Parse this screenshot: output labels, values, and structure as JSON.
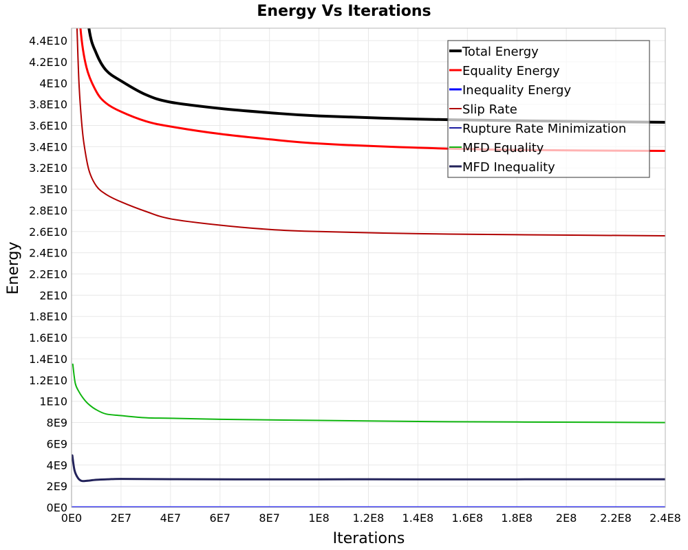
{
  "chart_data": {
    "type": "line",
    "title": "Energy Vs Iterations",
    "xlabel": "Iterations",
    "ylabel": "Energy",
    "xlim": [
      0,
      240000000
    ],
    "ylim": [
      0,
      45170000000
    ],
    "grid": true,
    "legend_position": "top-right",
    "x_ticks": [
      {
        "value": 0,
        "label": "0E0"
      },
      {
        "value": 20000000,
        "label": "2E7"
      },
      {
        "value": 40000000,
        "label": "4E7"
      },
      {
        "value": 60000000,
        "label": "6E7"
      },
      {
        "value": 80000000,
        "label": "8E7"
      },
      {
        "value": 100000000,
        "label": "1E8"
      },
      {
        "value": 120000000,
        "label": "1.2E8"
      },
      {
        "value": 140000000,
        "label": "1.4E8"
      },
      {
        "value": 160000000,
        "label": "1.6E8"
      },
      {
        "value": 180000000,
        "label": "1.8E8"
      },
      {
        "value": 200000000,
        "label": "2E8"
      },
      {
        "value": 220000000,
        "label": "2.2E8"
      },
      {
        "value": 240000000,
        "label": "2.4E8"
      }
    ],
    "y_ticks": [
      {
        "value": 0,
        "label": "0E0"
      },
      {
        "value": 2000000000,
        "label": "2E9"
      },
      {
        "value": 4000000000,
        "label": "4E9"
      },
      {
        "value": 6000000000,
        "label": "6E9"
      },
      {
        "value": 8000000000,
        "label": "8E9"
      },
      {
        "value": 10000000000,
        "label": "1E10"
      },
      {
        "value": 12000000000,
        "label": "1.2E10"
      },
      {
        "value": 14000000000,
        "label": "1.4E10"
      },
      {
        "value": 16000000000,
        "label": "1.6E10"
      },
      {
        "value": 18000000000,
        "label": "1.8E10"
      },
      {
        "value": 20000000000,
        "label": "2E10"
      },
      {
        "value": 22000000000,
        "label": "2.2E10"
      },
      {
        "value": 24000000000,
        "label": "2.4E10"
      },
      {
        "value": 26000000000,
        "label": "2.6E10"
      },
      {
        "value": 28000000000,
        "label": "2.8E10"
      },
      {
        "value": 30000000000,
        "label": "3E10"
      },
      {
        "value": 32000000000,
        "label": "3.2E10"
      },
      {
        "value": 34000000000,
        "label": "3.4E10"
      },
      {
        "value": 36000000000,
        "label": "3.6E10"
      },
      {
        "value": 38000000000,
        "label": "3.8E10"
      },
      {
        "value": 40000000000,
        "label": "4E10"
      },
      {
        "value": 42000000000,
        "label": "4.2E10"
      },
      {
        "value": 44000000000,
        "label": "4.4E10"
      }
    ],
    "series": [
      {
        "name": "Total Energy",
        "color": "#000000",
        "weight": "thick",
        "x": [
          4000000,
          7000000,
          10000000,
          14000000,
          20000000,
          30000000,
          40000000,
          60000000,
          80000000,
          100000000,
          140000000,
          180000000,
          240000000
        ],
        "y": [
          52000000000,
          45200000000,
          42800000000,
          41200000000,
          40200000000,
          38900000000,
          38200000000,
          37600000000,
          37200000000,
          36900000000,
          36600000000,
          36450000000,
          36300000000
        ]
      },
      {
        "name": "Equality Energy",
        "color": "#ff0000",
        "weight": "medium",
        "x": [
          2000000,
          3600000,
          6000000,
          10000000,
          14000000,
          20000000,
          30000000,
          40000000,
          60000000,
          80000000,
          100000000,
          140000000,
          180000000,
          240000000
        ],
        "y": [
          52000000000,
          45200000000,
          41500000000,
          39200000000,
          38100000000,
          37300000000,
          36400000000,
          35900000000,
          35200000000,
          34700000000,
          34300000000,
          33900000000,
          33700000000,
          33600000000
        ]
      },
      {
        "name": "Inequality Energy",
        "color": "#0000ff",
        "weight": "medium",
        "x": [
          0,
          240000000
        ],
        "y": [
          0,
          0
        ]
      },
      {
        "name": "Slip Rate",
        "color": "#b00000",
        "weight": "thin",
        "x": [
          1500000,
          2200000,
          3000000,
          4000000,
          5000000,
          7000000,
          10000000,
          14000000,
          20000000,
          30000000,
          40000000,
          60000000,
          80000000,
          100000000,
          140000000,
          180000000,
          240000000
        ],
        "y": [
          50000000000,
          45200000000,
          40000000000,
          36500000000,
          34300000000,
          31800000000,
          30300000000,
          29500000000,
          28800000000,
          27900000000,
          27200000000,
          26600000000,
          26200000000,
          26000000000,
          25800000000,
          25700000000,
          25600000000
        ]
      },
      {
        "name": "Rupture Rate Minimization",
        "color": "#1a1aa0",
        "weight": "thin",
        "x": [
          0,
          240000000
        ],
        "y": [
          0,
          0
        ]
      },
      {
        "name": "MFD Equality",
        "color": "#0fb50f",
        "weight": "thin",
        "x": [
          500000,
          1500000,
          3000000,
          5000000,
          7000000,
          10000000,
          14000000,
          20000000,
          30000000,
          40000000,
          60000000,
          80000000,
          100000000,
          140000000,
          180000000,
          240000000
        ],
        "y": [
          13500000000,
          11700000000,
          10900000000,
          10200000000,
          9700000000,
          9200000000,
          8800000000,
          8650000000,
          8450000000,
          8400000000,
          8300000000,
          8250000000,
          8200000000,
          8100000000,
          8050000000,
          8000000000
        ]
      },
      {
        "name": "MFD Inequality",
        "color": "#22225a",
        "weight": "medium",
        "x": [
          300000,
          1200000,
          2500000,
          4000000,
          6000000,
          10000000,
          15000000,
          20000000,
          40000000,
          80000000,
          120000000,
          160000000,
          200000000,
          240000000
        ],
        "y": [
          4900000000,
          3500000000,
          2800000000,
          2500000000,
          2500000000,
          2600000000,
          2650000000,
          2680000000,
          2660000000,
          2640000000,
          2650000000,
          2640000000,
          2650000000,
          2650000000
        ]
      }
    ]
  }
}
